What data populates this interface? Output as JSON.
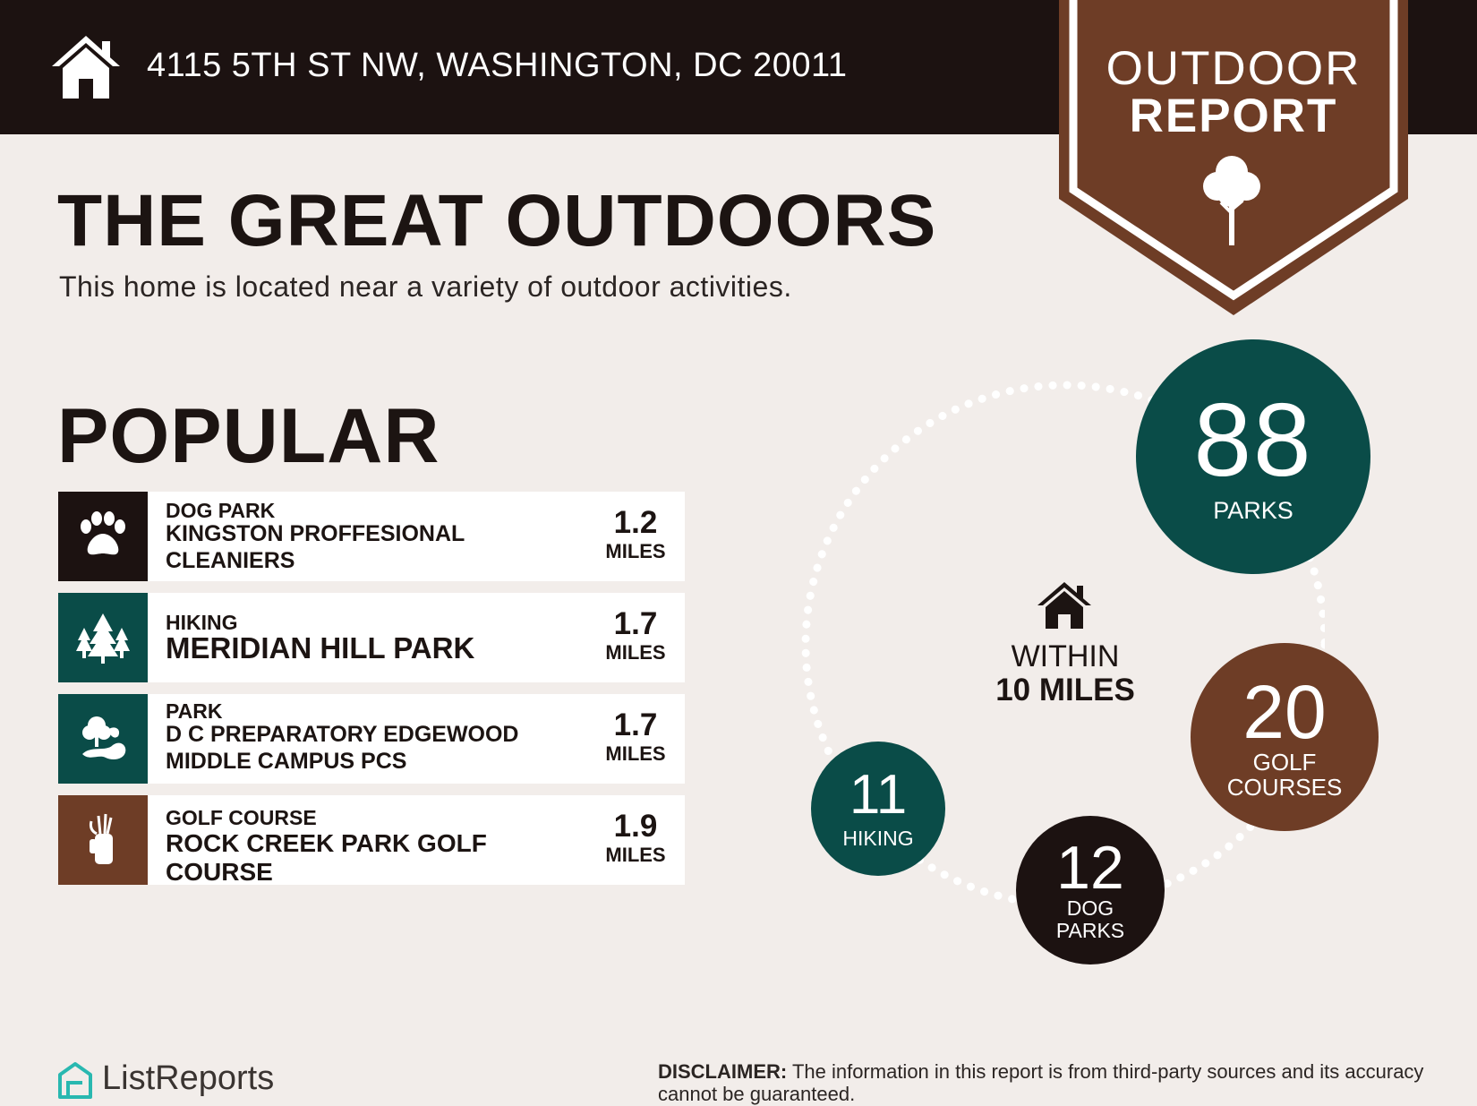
{
  "header": {
    "address": "4115 5TH ST NW, WASHINGTON, DC 20011",
    "home_icon": "house-icon",
    "background_color": "#1c1211"
  },
  "badge": {
    "line1": "OUTDOOR",
    "line2": "REPORT",
    "icon": "tree-icon",
    "color": "#6e3d26"
  },
  "intro": {
    "title": "THE GREAT OUTDOORS",
    "subtitle": "This home is located near a variety of outdoor activities."
  },
  "popular": {
    "heading": "POPULAR",
    "items": [
      {
        "category": "DOG PARK",
        "name": "KINGSTON PROFFESIONAL CLEANIERS",
        "distance": "1.2",
        "unit": "MILES",
        "icon": "paw-icon",
        "color": "#1c1211"
      },
      {
        "category": "HIKING",
        "name": "MERIDIAN HILL PARK",
        "distance": "1.7",
        "unit": "MILES",
        "icon": "trees-icon",
        "color": "#0a4c48"
      },
      {
        "category": "PARK",
        "name": "D C PREPARATORY EDGEWOOD MIDDLE CAMPUS PCS",
        "distance": "1.7",
        "unit": "MILES",
        "icon": "park-icon",
        "color": "#0a4c48"
      },
      {
        "category": "GOLF COURSE",
        "name": "ROCK CREEK PARK GOLF COURSE",
        "distance": "1.9",
        "unit": "MILES",
        "icon": "golf-bag-icon",
        "color": "#6e3d26"
      }
    ]
  },
  "summary": {
    "center_icon": "house-icon",
    "within_line1": "WITHIN",
    "within_line2": "10 MILES",
    "parks": {
      "count": "88",
      "label": "PARKS",
      "color": "#0a4c48"
    },
    "golf": {
      "count": "20",
      "label_line1": "GOLF",
      "label_line2": "COURSES",
      "color": "#6e3d26"
    },
    "dog": {
      "count": "12",
      "label_line1": "DOG",
      "label_line2": "PARKS",
      "color": "#1c1211"
    },
    "hiking": {
      "count": "11",
      "label": "HIKING",
      "color": "#0a4c48"
    }
  },
  "footer": {
    "brand": "ListReports",
    "logo_icon": "listreports-logo-icon",
    "disclaimer_label": "DISCLAIMER:",
    "disclaimer_text": "The information in this report is from third-party sources and its accuracy cannot be guaranteed."
  }
}
